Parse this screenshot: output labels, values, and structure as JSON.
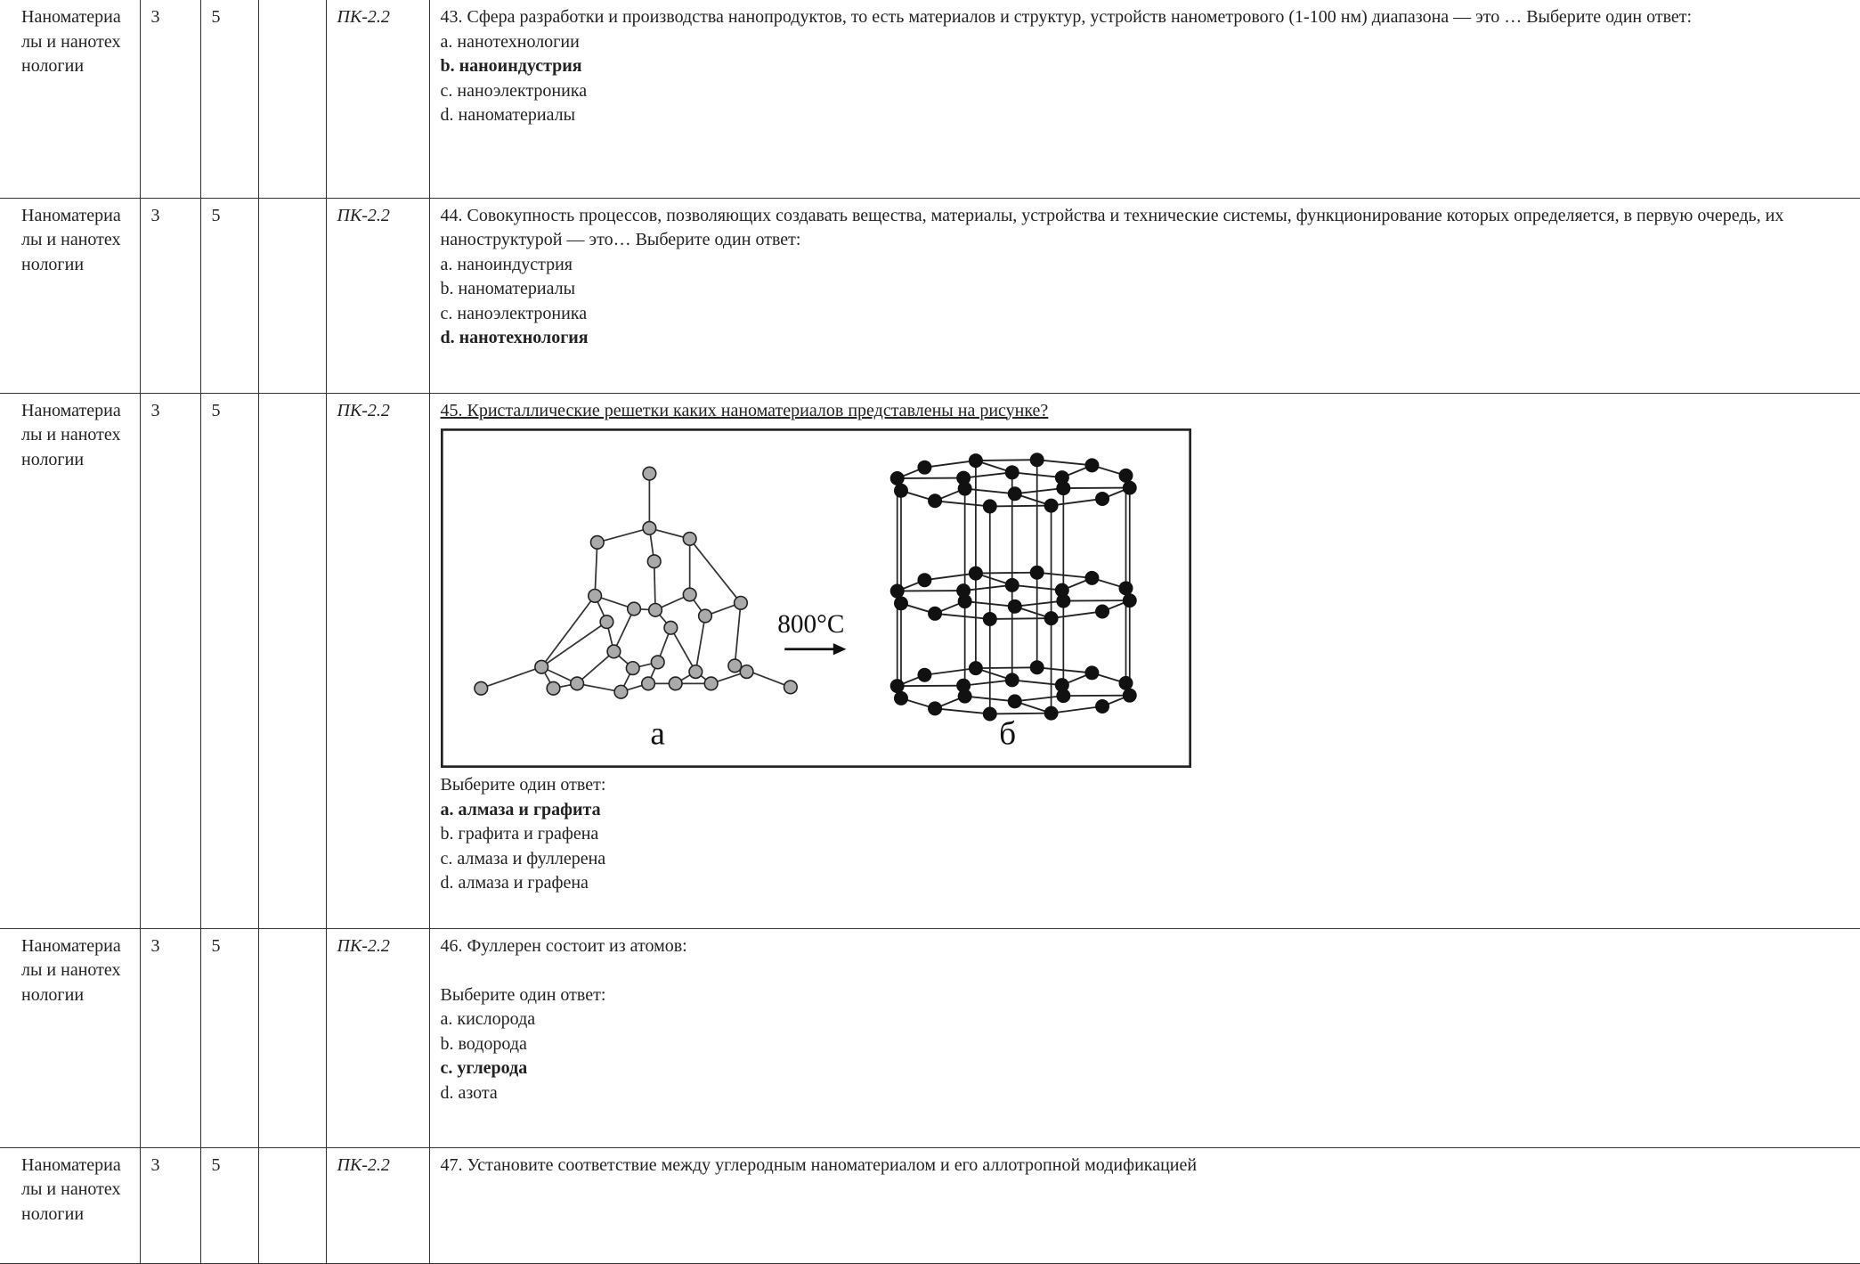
{
  "table": {
    "rows": [
      {
        "subject": "Наноматериалы и нанотехнологии",
        "course": "3",
        "credits": "5",
        "competence": "ПК-2.2",
        "question": {
          "text": "43. Сфера разработки и производства нанопродуктов, то есть материалов и структур, устройств нанометрового (1-100 нм) диапазона — это … Выберите один ответ:",
          "options": [
            "a. нанотехнологии",
            "b. наноиндустрия",
            "c. наноэлектроника",
            "d. наноматериалы"
          ],
          "correct": 1
        }
      },
      {
        "subject": "Наноматериалы и нанотехнологии",
        "course": "3",
        "credits": "5",
        "competence": "ПК-2.2",
        "question": {
          "text": "44. Совокупность процессов, позволяющих создавать вещества, материалы, устройства и технические системы, функционирование которых определяется, в первую очередь, их наноструктурой — это… Выберите один ответ:",
          "options": [
            "a. наноиндустрия",
            "b. наноматериалы",
            "c. наноэлектроника",
            "d. нанотехнология"
          ],
          "correct": 3
        }
      },
      {
        "subject": "Наноматериалы и нанотехнологии",
        "course": "3",
        "credits": "5",
        "competence": "ПК-2.2",
        "question": {
          "text": "45. Кристаллические решетки каких наноматериалов представлены на рисунке?",
          "figure": {
            "arrow_label": "800°C",
            "labels": [
              "а",
              "б"
            ]
          },
          "instruction": "Выберите один ответ:",
          "options": [
            "a. алмаза и графита",
            "b. графита и графена",
            "c. алмаза и фуллерена",
            "d. алмаза и графена"
          ],
          "correct": 0
        }
      },
      {
        "subject": "Наноматериалы и нанотехнологии",
        "course": "3",
        "credits": "5",
        "competence": "ПК-2.2",
        "question": {
          "text": "46. Фуллерен состоит из атомов:",
          "instruction": "Выберите один ответ:",
          "options": [
            "a. кислорода",
            "b. водорода",
            "c. углерода",
            "d. азота"
          ],
          "correct": 2
        }
      },
      {
        "subject": "Наноматериалы и нанотехнологии",
        "course": "3",
        "credits": "5",
        "competence": "ПК-2.2",
        "question": {
          "text": "47. Установите соответствие между углеродным наноматериалом и его аллотропной модификацией"
        }
      }
    ]
  }
}
